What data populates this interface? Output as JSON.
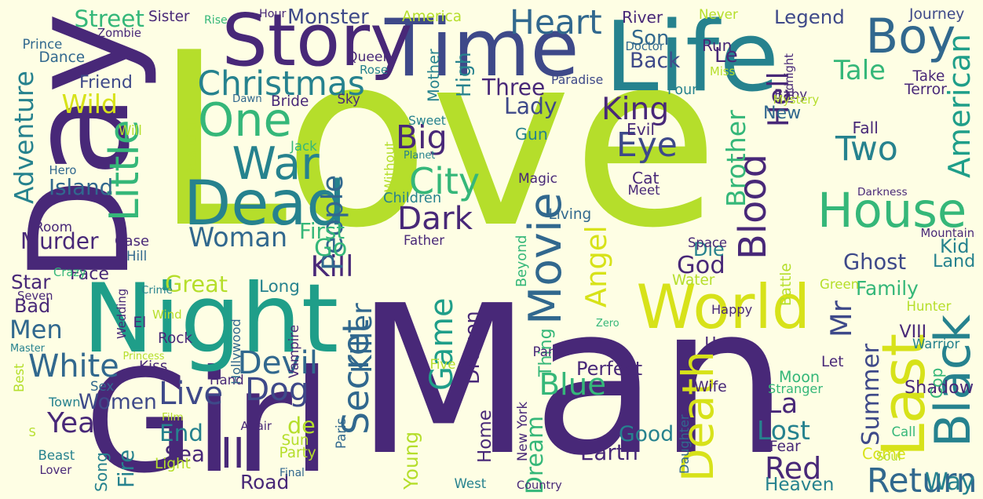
{
  "wordcloud": {
    "colors": {
      "background": "#fefee4",
      "palette": {
        "d": "#482878",
        "d2": "#3e4989",
        "b": "#31688e",
        "t": "#26828e",
        "t2": "#1f9e89",
        "g": "#35b779",
        "l": "#6ece58",
        "y": "#b5de2b",
        "y2": "#d7e219"
      }
    },
    "words": [
      {
        "t": "Love",
        "c": "y"
      },
      {
        "t": "Man",
        "c": "d"
      },
      {
        "t": "Day",
        "c": "d"
      },
      {
        "t": "Girl",
        "c": "d"
      },
      {
        "t": "Night",
        "c": "t2"
      },
      {
        "t": "Time",
        "c": "d2"
      },
      {
        "t": "Life",
        "c": "t"
      },
      {
        "t": "Story",
        "c": "d"
      },
      {
        "t": "Last",
        "c": "y2"
      },
      {
        "t": "Black",
        "c": "t"
      },
      {
        "t": "Dead",
        "c": "t"
      },
      {
        "t": "Movie",
        "c": "b"
      },
      {
        "t": "World",
        "c": "y2"
      },
      {
        "t": "Death",
        "c": "y2"
      },
      {
        "t": "House",
        "c": "g"
      },
      {
        "t": "Boy",
        "c": "b"
      },
      {
        "t": "One",
        "c": "g"
      },
      {
        "t": "Blood",
        "c": "d"
      },
      {
        "t": "Little",
        "c": "g"
      },
      {
        "t": "War",
        "c": "t"
      },
      {
        "t": "American",
        "c": "t2"
      },
      {
        "t": "Christmas",
        "c": "t"
      },
      {
        "t": "Heart",
        "c": "b"
      },
      {
        "t": "Big",
        "c": "d"
      },
      {
        "t": "City",
        "c": "g"
      },
      {
        "t": "Dark",
        "c": "d"
      },
      {
        "t": "Woman",
        "c": "b"
      },
      {
        "t": "II",
        "c": "d"
      },
      {
        "t": "White",
        "c": "b"
      },
      {
        "t": "Live",
        "c": "d2"
      },
      {
        "t": "Secret",
        "c": "b"
      },
      {
        "t": "Lost",
        "c": "t"
      },
      {
        "t": "Return",
        "c": "b"
      },
      {
        "t": "Blue",
        "c": "g"
      },
      {
        "t": "Dream",
        "c": "g"
      },
      {
        "t": "Red",
        "c": "d"
      },
      {
        "t": "Two",
        "c": "t"
      },
      {
        "t": "Tale",
        "c": "g"
      },
      {
        "t": "Eye",
        "c": "d2"
      },
      {
        "t": "King",
        "c": "d"
      },
      {
        "t": "Year",
        "c": "d"
      },
      {
        "t": "Devil",
        "c": "b"
      },
      {
        "t": "Dog",
        "c": "d2"
      },
      {
        "t": "Kill",
        "c": "d"
      },
      {
        "t": "Men",
        "c": "b"
      },
      {
        "t": "Adventure",
        "c": "t"
      },
      {
        "t": "Angel",
        "c": "y2"
      },
      {
        "t": "Summer",
        "c": "d2"
      },
      {
        "t": "Game",
        "c": "t2"
      },
      {
        "t": "Mr",
        "c": "d2"
      },
      {
        "t": "Killer",
        "c": "b"
      },
      {
        "t": "Wild",
        "c": "y2"
      },
      {
        "t": "Legend",
        "c": "d2"
      },
      {
        "t": "Street",
        "c": "g"
      },
      {
        "t": "Son",
        "c": "b"
      },
      {
        "t": "Back",
        "c": "d2"
      },
      {
        "t": "Monster",
        "c": "d2"
      },
      {
        "t": "La",
        "c": "d"
      },
      {
        "t": "God",
        "c": "d"
      },
      {
        "t": "Ghost",
        "c": "d2"
      },
      {
        "t": "Good",
        "c": "t"
      },
      {
        "t": "Moon",
        "c": "g"
      },
      {
        "t": "Way",
        "c": "t"
      },
      {
        "t": "Shadow",
        "c": "d"
      },
      {
        "t": "Heaven",
        "c": "t"
      },
      {
        "t": "Brother",
        "c": "g"
      },
      {
        "t": "Hell",
        "c": "d"
      },
      {
        "t": "New",
        "c": "b"
      },
      {
        "t": "Murder",
        "c": "d"
      },
      {
        "t": "Island",
        "c": "b"
      },
      {
        "t": "People",
        "c": "b"
      },
      {
        "t": "Lady",
        "c": "d2"
      },
      {
        "t": "Three",
        "c": "d"
      },
      {
        "t": "Great",
        "c": "y"
      },
      {
        "t": "First",
        "c": "g"
      },
      {
        "t": "Go",
        "c": "g"
      },
      {
        "t": "Star",
        "c": "d"
      },
      {
        "t": "End",
        "c": "t"
      },
      {
        "t": "Sea",
        "c": "d"
      },
      {
        "t": "Fire",
        "c": "t"
      },
      {
        "t": "Young",
        "c": "y"
      },
      {
        "t": "Road",
        "c": "d"
      },
      {
        "t": "Home",
        "c": "d"
      },
      {
        "t": "Earth",
        "c": "d"
      },
      {
        "t": "Perfect",
        "c": "d"
      },
      {
        "t": "Women",
        "c": "d2"
      },
      {
        "t": "Come",
        "c": "y2"
      },
      {
        "t": "Family",
        "c": "g"
      },
      {
        "t": "Kid",
        "c": "t"
      },
      {
        "t": "Land",
        "c": "t"
      },
      {
        "t": "Die",
        "c": "t"
      },
      {
        "t": "Le",
        "c": "d"
      },
      {
        "t": "de",
        "c": "y"
      },
      {
        "t": "Dragon",
        "c": "d"
      },
      {
        "t": "Gun",
        "c": "t"
      },
      {
        "t": "High",
        "c": "t"
      },
      {
        "t": "Friend",
        "c": "d2"
      },
      {
        "t": "Room",
        "c": "d"
      },
      {
        "t": "Bad",
        "c": "d"
      },
      {
        "t": "Face",
        "c": "d"
      },
      {
        "t": "Long",
        "c": "t"
      },
      {
        "t": "Children",
        "c": "t"
      },
      {
        "t": "Rose",
        "c": "t"
      },
      {
        "t": "Queen",
        "c": "d"
      },
      {
        "t": "America",
        "c": "y"
      },
      {
        "t": "Mother",
        "c": "t"
      },
      {
        "t": "Zombie",
        "c": "d"
      },
      {
        "t": "Dance",
        "c": "b"
      },
      {
        "t": "Prince",
        "c": "b"
      },
      {
        "t": "Sister",
        "c": "d"
      },
      {
        "t": "Hour",
        "c": "d"
      },
      {
        "t": "Rise",
        "c": "g"
      },
      {
        "t": "Run",
        "c": "d"
      },
      {
        "t": "Never",
        "c": "y"
      },
      {
        "t": "River",
        "c": "d"
      },
      {
        "t": "Journey",
        "c": "d2"
      },
      {
        "t": "Doctor",
        "c": "b"
      },
      {
        "t": "Miss",
        "c": "y"
      },
      {
        "t": "Midnight",
        "c": "d"
      },
      {
        "t": "Baby",
        "c": "d"
      },
      {
        "t": "Mystery",
        "c": "y"
      },
      {
        "t": "Terror",
        "c": "d"
      },
      {
        "t": "Take",
        "c": "d"
      },
      {
        "t": "Paradise",
        "c": "d2"
      },
      {
        "t": "Four",
        "c": "t"
      },
      {
        "t": "Fall",
        "c": "d"
      },
      {
        "t": "Evil",
        "c": "d"
      },
      {
        "t": "Cat",
        "c": "d"
      },
      {
        "t": "Meet",
        "c": "d"
      },
      {
        "t": "Darkness",
        "c": "d"
      },
      {
        "t": "Space",
        "c": "d"
      },
      {
        "t": "Mountain",
        "c": "d"
      },
      {
        "t": "Water",
        "c": "y"
      },
      {
        "t": "Green",
        "c": "y"
      },
      {
        "t": "Battle",
        "c": "y"
      },
      {
        "t": "Happy",
        "c": "d"
      },
      {
        "t": "Hunter",
        "c": "y"
      },
      {
        "t": "VIII",
        "c": "d"
      },
      {
        "t": "Warrior",
        "c": "t"
      },
      {
        "t": "Cop",
        "c": "g"
      },
      {
        "t": "Let",
        "c": "d"
      },
      {
        "t": "Wife",
        "c": "d"
      },
      {
        "t": "Stranger",
        "c": "g"
      },
      {
        "t": "Fear",
        "c": "d"
      },
      {
        "t": "Call",
        "c": "g"
      },
      {
        "t": "Soul",
        "c": "y"
      },
      {
        "t": "Country",
        "c": "d"
      },
      {
        "t": "West",
        "c": "t"
      },
      {
        "t": "Final",
        "c": "b"
      },
      {
        "t": "Party",
        "c": "y"
      },
      {
        "t": "Sun",
        "c": "y"
      },
      {
        "t": "Affair",
        "c": "d"
      },
      {
        "t": "Paris",
        "c": "b"
      },
      {
        "t": "New York",
        "c": "d"
      },
      {
        "t": "Thing",
        "c": "g"
      },
      {
        "t": "Five",
        "c": "y"
      },
      {
        "t": "Part",
        "c": "d"
      },
      {
        "t": "Zero",
        "c": "g"
      },
      {
        "t": "U",
        "c": "d"
      },
      {
        "t": "Daughter",
        "c": "b"
      },
      {
        "t": "Beyond",
        "c": "g"
      },
      {
        "t": "Living",
        "c": "b"
      },
      {
        "t": "Magic",
        "c": "d"
      },
      {
        "t": "Father",
        "c": "d"
      },
      {
        "t": "Planet",
        "c": "t"
      },
      {
        "t": "Without",
        "c": "y"
      },
      {
        "t": "Sweet",
        "c": "t"
      },
      {
        "t": "Sky",
        "c": "d"
      },
      {
        "t": "Bride",
        "c": "d"
      },
      {
        "t": "Dawn",
        "c": "b"
      },
      {
        "t": "Will",
        "c": "y"
      },
      {
        "t": "Jack",
        "c": "g"
      },
      {
        "t": "Beautiful",
        "c": "y"
      },
      {
        "t": "Hero",
        "c": "b"
      },
      {
        "t": "Case",
        "c": "d"
      },
      {
        "t": "Hill",
        "c": "b"
      },
      {
        "t": "Crazy",
        "c": "g"
      },
      {
        "t": "Crime",
        "c": "t"
      },
      {
        "t": "Seven",
        "c": "d"
      },
      {
        "t": "Wedding",
        "c": "d"
      },
      {
        "t": "El",
        "c": "d"
      },
      {
        "t": "Wind",
        "c": "y"
      },
      {
        "t": "Rock",
        "c": "d"
      },
      {
        "t": "Master",
        "c": "t"
      },
      {
        "t": "Kiss",
        "c": "d"
      },
      {
        "t": "Princess",
        "c": "y"
      },
      {
        "t": "Best",
        "c": "y"
      },
      {
        "t": "Sex",
        "c": "b"
      },
      {
        "t": "Hand",
        "c": "d"
      },
      {
        "t": "Vampire",
        "c": "d"
      },
      {
        "t": "Hollywood",
        "c": "b"
      },
      {
        "t": "Town",
        "c": "t"
      },
      {
        "t": "Film",
        "c": "y"
      },
      {
        "t": "S",
        "c": "y"
      },
      {
        "t": "Beast",
        "c": "t"
      },
      {
        "t": "Lover",
        "c": "d"
      },
      {
        "t": "Song",
        "c": "t"
      },
      {
        "t": "Light",
        "c": "y"
      }
    ]
  }
}
